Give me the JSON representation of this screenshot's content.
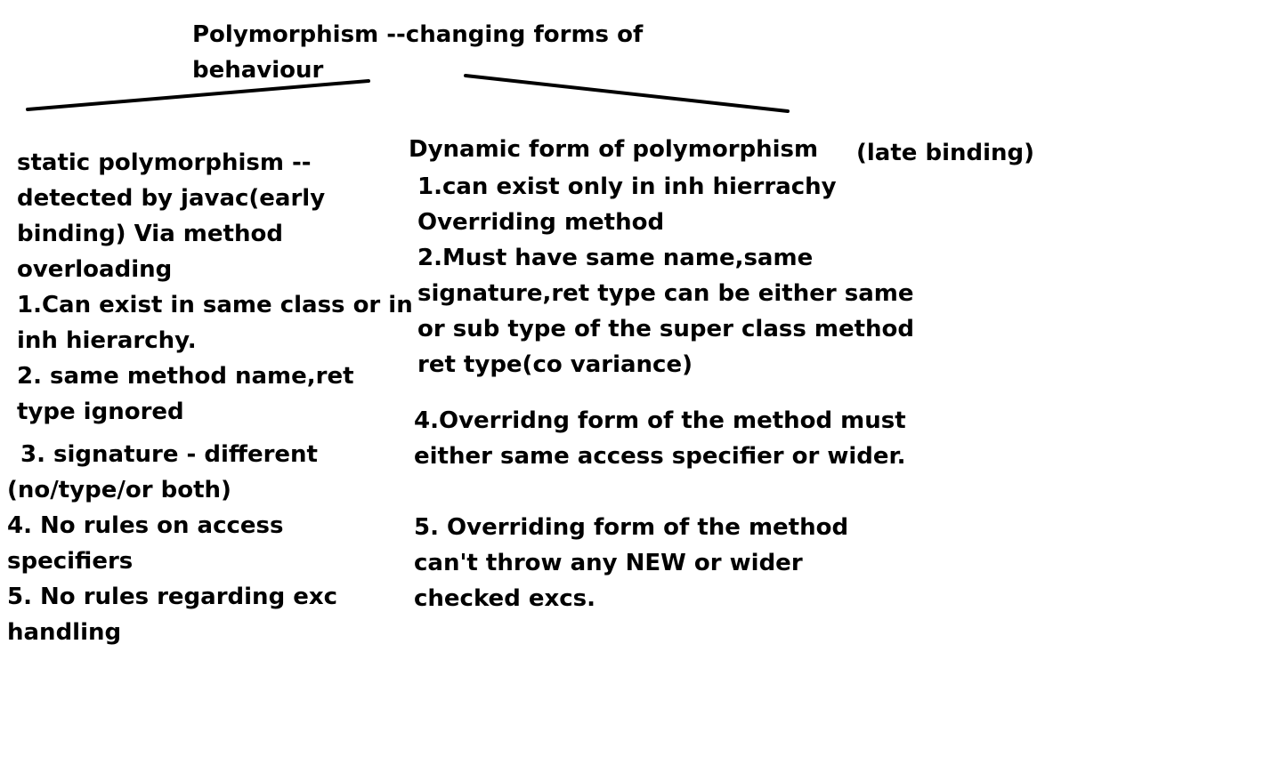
{
  "title": {
    "line1": "Polymorphism --changing forms of",
    "line2": "behaviour"
  },
  "static_branch": {
    "lines": [
      "static polymorphism --",
      "detected by javac(early",
      "binding) Via method",
      "overloading",
      "1.Can exist in same class or in",
      "inh hierarchy.",
      "2. same method name,ret",
      "type ignored",
      "3. signature - different",
      "(no/type/or both)",
      "4. No rules on access",
      "specifiers",
      "5. No rules regarding exc",
      "handling"
    ]
  },
  "dynamic_branch": {
    "heading": "Dynamic form of polymorphism",
    "heading_note": "(late binding)",
    "lines": [
      "1.can exist only in inh hierrachy",
      "Overriding method",
      "2.Must have same name,same",
      "signature,ret type can be either same",
      "or sub type of the super class method",
      "ret type(co variance)",
      "4.Overridng form of the method must",
      "either same access specifier or wider.",
      "5. Overriding form of the method",
      "can't throw any NEW or wider",
      "checked excs."
    ]
  },
  "colors": {
    "ink": "#000000",
    "background": "#ffffff"
  }
}
